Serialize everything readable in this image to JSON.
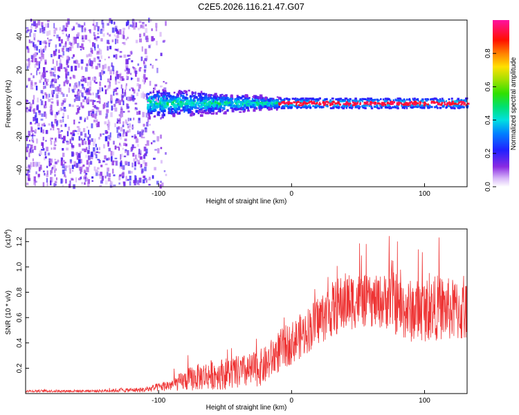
{
  "title": "C2E5.2026.116.21.47.G07",
  "chart_data": [
    {
      "type": "heatmap",
      "name": "spectrogram",
      "xlabel": "Height of straight line (km)",
      "ylabel": "Frequency (Hz)",
      "xlim": [
        -200,
        132
      ],
      "ylim": [
        -50,
        50
      ],
      "xticks": [
        -100,
        0,
        100
      ],
      "yticks": [
        -40,
        -20,
        0,
        20,
        40
      ],
      "colorbar": {
        "label": "Normalized spectral amplitude",
        "range": [
          0,
          1
        ],
        "ticks": [
          0.0,
          0.2,
          0.4,
          0.6,
          0.8
        ]
      },
      "regions": [
        {
          "x_from": -200,
          "x_to": -109,
          "description": "broadband noise",
          "freq_spread": 50,
          "amplitude": 0.05
        },
        {
          "x_from": -109,
          "x_to": -10,
          "description": "narrowing signal band",
          "center": 0,
          "halfwidth_start": 8,
          "halfwidth_end": 3,
          "amplitude": 0.35
        },
        {
          "x_from": -10,
          "x_to": 132,
          "description": "strong narrow carrier",
          "center": 0,
          "halfwidth": 3,
          "amplitude": 0.95
        }
      ]
    },
    {
      "type": "line",
      "name": "snr",
      "xlabel": "Height of straight line (km)",
      "ylabel": "SNR (10 * v/v)",
      "y_scale_label": "(x10",
      "y_scale_exponent": "4",
      "y_scale_close": ")",
      "xlim": [
        -200,
        132
      ],
      "ylim": [
        0,
        1.3
      ],
      "xticks": [
        -100,
        0,
        100
      ],
      "yticks": [
        0.2,
        0.4,
        0.6,
        0.8,
        1.0,
        1.2
      ],
      "color": "#ee3333",
      "series": [
        {
          "name": "SNR",
          "x": [
            -200,
            -150,
            -110,
            -90,
            -75,
            -60,
            -45,
            -30,
            -20,
            -10,
            0,
            10,
            20,
            30,
            40,
            50,
            60,
            70,
            75,
            80,
            90,
            100,
            110,
            120,
            132
          ],
          "mean": [
            0.02,
            0.02,
            0.03,
            0.07,
            0.12,
            0.15,
            0.16,
            0.18,
            0.22,
            0.33,
            0.4,
            0.48,
            0.58,
            0.66,
            0.72,
            0.74,
            0.72,
            0.73,
            0.8,
            0.68,
            0.65,
            0.66,
            0.68,
            0.66,
            0.64
          ],
          "spread": [
            0.01,
            0.01,
            0.02,
            0.05,
            0.1,
            0.12,
            0.13,
            0.14,
            0.15,
            0.17,
            0.17,
            0.18,
            0.2,
            0.22,
            0.24,
            0.22,
            0.2,
            0.22,
            0.3,
            0.24,
            0.25,
            0.25,
            0.26,
            0.25,
            0.25
          ]
        }
      ]
    }
  ]
}
